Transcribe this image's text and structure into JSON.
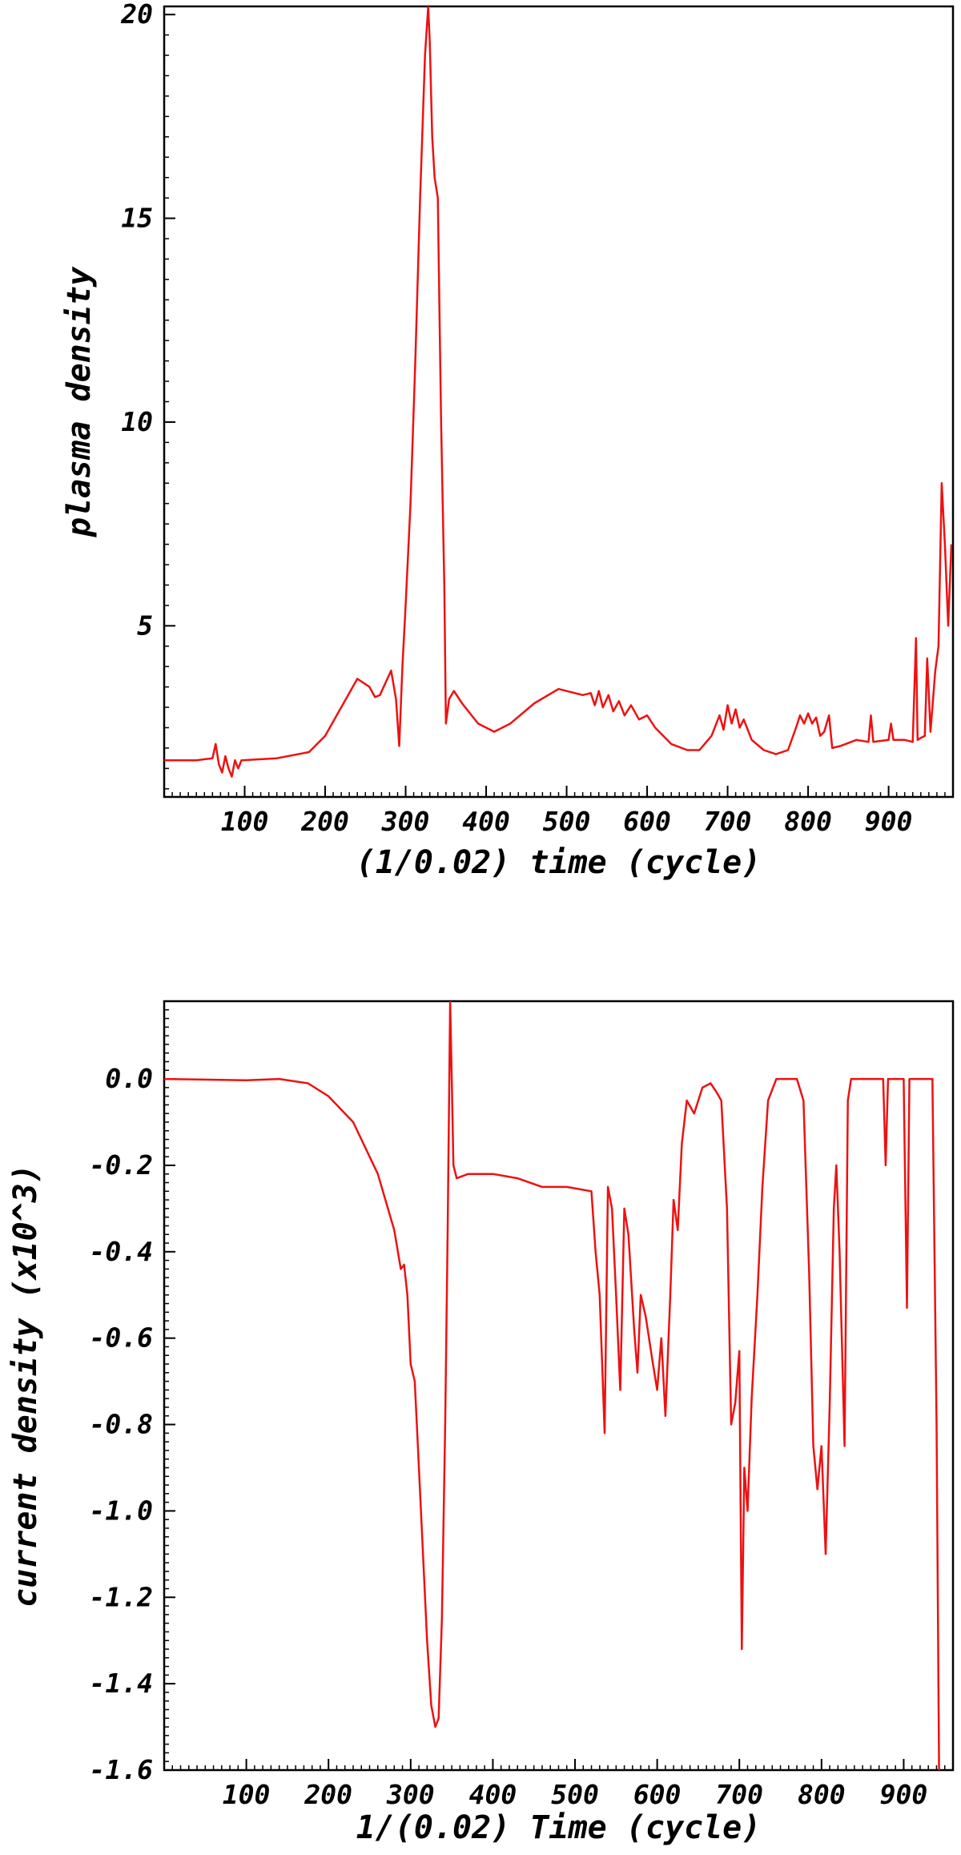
{
  "chart_data": [
    {
      "type": "line",
      "title": "",
      "xlabel": "(1/0.02) time (cycle)",
      "ylabel": "plasma density",
      "xlim": [
        0,
        980
      ],
      "ylim": [
        0.8,
        20.2
      ],
      "xticks": [
        100,
        200,
        300,
        400,
        500,
        600,
        700,
        800,
        900
      ],
      "yticks": [
        5,
        10,
        15,
        20
      ],
      "grid": false,
      "color": "#ee1111",
      "series": [
        {
          "points": [
            [
              0,
              1.7
            ],
            [
              40,
              1.7
            ],
            [
              60,
              1.75
            ],
            [
              64,
              2.1
            ],
            [
              68,
              1.6
            ],
            [
              72,
              1.4
            ],
            [
              76,
              1.8
            ],
            [
              80,
              1.5
            ],
            [
              84,
              1.3
            ],
            [
              88,
              1.7
            ],
            [
              92,
              1.5
            ],
            [
              96,
              1.7
            ],
            [
              140,
              1.75
            ],
            [
              180,
              1.9
            ],
            [
              200,
              2.3
            ],
            [
              220,
              3.0
            ],
            [
              240,
              3.7
            ],
            [
              255,
              3.5
            ],
            [
              262,
              3.25
            ],
            [
              268,
              3.3
            ],
            [
              275,
              3.6
            ],
            [
              282,
              3.9
            ],
            [
              288,
              3.2
            ],
            [
              292,
              2.05
            ],
            [
              296,
              4.0
            ],
            [
              300,
              5.5
            ],
            [
              306,
              8.0
            ],
            [
              312,
              11.5
            ],
            [
              318,
              15.5
            ],
            [
              324,
              19.0
            ],
            [
              328,
              20.2
            ],
            [
              330,
              19.3
            ],
            [
              333,
              17.0
            ],
            [
              336,
              16.0
            ],
            [
              340,
              15.5
            ],
            [
              344,
              10.0
            ],
            [
              348,
              6.0
            ],
            [
              350,
              2.6
            ],
            [
              354,
              3.2
            ],
            [
              360,
              3.4
            ],
            [
              370,
              3.1
            ],
            [
              390,
              2.6
            ],
            [
              410,
              2.4
            ],
            [
              430,
              2.6
            ],
            [
              460,
              3.1
            ],
            [
              490,
              3.45
            ],
            [
              520,
              3.3
            ],
            [
              530,
              3.35
            ],
            [
              535,
              3.05
            ],
            [
              540,
              3.4
            ],
            [
              545,
              3.0
            ],
            [
              552,
              3.3
            ],
            [
              558,
              2.9
            ],
            [
              565,
              3.15
            ],
            [
              572,
              2.8
            ],
            [
              580,
              3.05
            ],
            [
              590,
              2.7
            ],
            [
              600,
              2.8
            ],
            [
              610,
              2.5
            ],
            [
              630,
              2.1
            ],
            [
              650,
              1.95
            ],
            [
              665,
              1.95
            ],
            [
              680,
              2.3
            ],
            [
              690,
              2.8
            ],
            [
              695,
              2.45
            ],
            [
              700,
              3.05
            ],
            [
              705,
              2.6
            ],
            [
              710,
              2.95
            ],
            [
              715,
              2.5
            ],
            [
              720,
              2.7
            ],
            [
              730,
              2.2
            ],
            [
              745,
              1.95
            ],
            [
              760,
              1.85
            ],
            [
              775,
              1.95
            ],
            [
              785,
              2.5
            ],
            [
              790,
              2.8
            ],
            [
              795,
              2.6
            ],
            [
              800,
              2.85
            ],
            [
              805,
              2.6
            ],
            [
              810,
              2.75
            ],
            [
              815,
              2.3
            ],
            [
              820,
              2.4
            ],
            [
              826,
              2.8
            ],
            [
              830,
              2.0
            ],
            [
              840,
              2.05
            ],
            [
              860,
              2.2
            ],
            [
              875,
              2.15
            ],
            [
              878,
              2.8
            ],
            [
              881,
              2.15
            ],
            [
              900,
              2.2
            ],
            [
              903,
              2.6
            ],
            [
              906,
              2.2
            ],
            [
              920,
              2.2
            ],
            [
              930,
              2.15
            ],
            [
              934,
              4.7
            ],
            [
              936,
              2.2
            ],
            [
              940,
              2.25
            ],
            [
              945,
              2.3
            ],
            [
              948,
              4.2
            ],
            [
              952,
              2.4
            ],
            [
              958,
              3.9
            ],
            [
              962,
              4.5
            ],
            [
              966,
              8.5
            ],
            [
              970,
              7.0
            ],
            [
              974,
              5.0
            ],
            [
              978,
              7.0
            ]
          ]
        }
      ]
    },
    {
      "type": "line",
      "title": "",
      "xlabel": "1/(0.02) Time (cycle)",
      "ylabel": "current density (x10^3)",
      "xlim": [
        0,
        960
      ],
      "ylim": [
        -1.6,
        0.18
      ],
      "xticks": [
        100,
        200,
        300,
        400,
        500,
        600,
        700,
        800,
        900
      ],
      "yticks": [
        "0.0",
        "-0.2",
        "-0.4",
        "-0.6",
        "-0.8",
        "-1.0",
        "-1.2",
        "-1.4",
        "-1.6"
      ],
      "grid": false,
      "color": "#ee1111",
      "series": [
        {
          "points": [
            [
              0,
              0.0
            ],
            [
              100,
              -0.003
            ],
            [
              140,
              0.0
            ],
            [
              175,
              -0.01
            ],
            [
              200,
              -0.04
            ],
            [
              230,
              -0.1
            ],
            [
              260,
              -0.22
            ],
            [
              280,
              -0.35
            ],
            [
              288,
              -0.44
            ],
            [
              292,
              -0.43
            ],
            [
              296,
              -0.5
            ],
            [
              300,
              -0.66
            ],
            [
              305,
              -0.7
            ],
            [
              310,
              -0.9
            ],
            [
              315,
              -1.1
            ],
            [
              320,
              -1.3
            ],
            [
              325,
              -1.45
            ],
            [
              330,
              -1.5
            ],
            [
              334,
              -1.48
            ],
            [
              338,
              -1.25
            ],
            [
              342,
              -0.8
            ],
            [
              345,
              -0.35
            ],
            [
              348,
              0.18
            ],
            [
              350,
              0.0
            ],
            [
              352,
              -0.2
            ],
            [
              356,
              -0.23
            ],
            [
              370,
              -0.22
            ],
            [
              400,
              -0.22
            ],
            [
              430,
              -0.23
            ],
            [
              460,
              -0.25
            ],
            [
              490,
              -0.25
            ],
            [
              520,
              -0.26
            ],
            [
              525,
              -0.4
            ],
            [
              530,
              -0.5
            ],
            [
              536,
              -0.82
            ],
            [
              540,
              -0.25
            ],
            [
              545,
              -0.3
            ],
            [
              550,
              -0.5
            ],
            [
              555,
              -0.72
            ],
            [
              560,
              -0.3
            ],
            [
              565,
              -0.36
            ],
            [
              572,
              -0.58
            ],
            [
              576,
              -0.68
            ],
            [
              580,
              -0.5
            ],
            [
              586,
              -0.55
            ],
            [
              594,
              -0.65
            ],
            [
              600,
              -0.72
            ],
            [
              605,
              -0.6
            ],
            [
              610,
              -0.78
            ],
            [
              616,
              -0.5
            ],
            [
              620,
              -0.28
            ],
            [
              625,
              -0.35
            ],
            [
              630,
              -0.15
            ],
            [
              636,
              -0.05
            ],
            [
              645,
              -0.08
            ],
            [
              655,
              -0.02
            ],
            [
              665,
              -0.01
            ],
            [
              672,
              -0.03
            ],
            [
              678,
              -0.05
            ],
            [
              685,
              -0.3
            ],
            [
              690,
              -0.8
            ],
            [
              695,
              -0.75
            ],
            [
              700,
              -0.63
            ],
            [
              703,
              -1.32
            ],
            [
              706,
              -0.9
            ],
            [
              710,
              -1.0
            ],
            [
              715,
              -0.74
            ],
            [
              722,
              -0.5
            ],
            [
              728,
              -0.25
            ],
            [
              735,
              -0.05
            ],
            [
              745,
              0.0
            ],
            [
              770,
              0.0
            ],
            [
              778,
              -0.05
            ],
            [
              785,
              -0.45
            ],
            [
              790,
              -0.85
            ],
            [
              795,
              -0.95
            ],
            [
              800,
              -0.85
            ],
            [
              805,
              -1.1
            ],
            [
              810,
              -0.75
            ],
            [
              815,
              -0.3
            ],
            [
              818,
              -0.2
            ],
            [
              822,
              -0.4
            ],
            [
              828,
              -0.85
            ],
            [
              832,
              -0.05
            ],
            [
              836,
              0.0
            ],
            [
              875,
              0.0
            ],
            [
              878,
              -0.2
            ],
            [
              881,
              0.0
            ],
            [
              900,
              0.0
            ],
            [
              904,
              -0.53
            ],
            [
              907,
              0.0
            ],
            [
              935,
              0.0
            ],
            [
              940,
              -0.8
            ],
            [
              943,
              -1.6
            ]
          ]
        }
      ]
    }
  ]
}
